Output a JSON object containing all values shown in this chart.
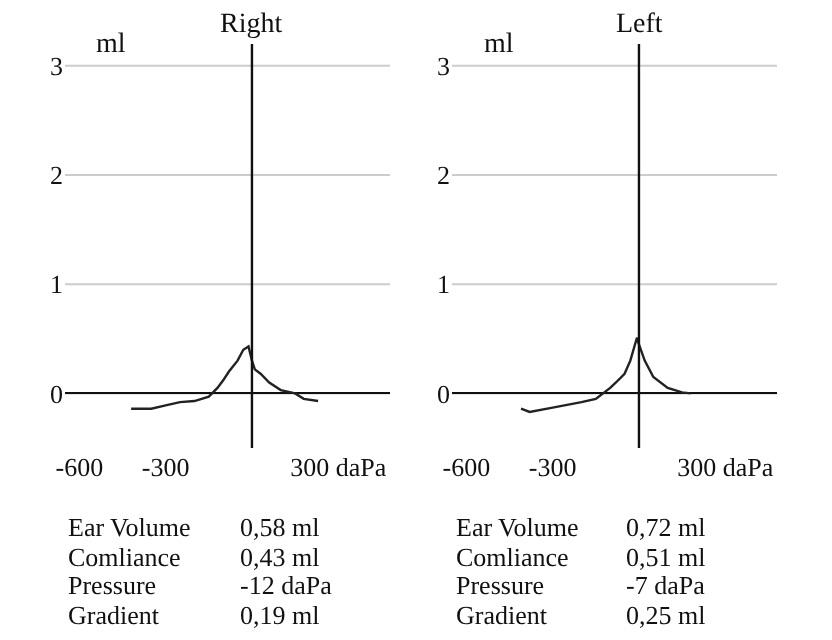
{
  "chart_data": [
    {
      "type": "line",
      "subtitle": "Right",
      "ref_lines": [
        {
          "axis": "x",
          "value": 0,
          "color": "#111111"
        }
      ],
      "ylabel": "ml",
      "xlim": [
        -650,
        480
      ],
      "ylim": [
        -0.5,
        3.2
      ],
      "xticks": [
        -600,
        -300,
        {
          "value": 300,
          "label": "300 daPa"
        }
      ],
      "yticks": [
        0,
        1,
        2,
        3
      ],
      "grid": "y",
      "marker": "none",
      "line_style": "solid",
      "series": [
        {
          "color": "#222222",
          "x": [
            -420,
            -350,
            -300,
            -250,
            -200,
            -150,
            -120,
            -100,
            -80,
            -50,
            -30,
            -12,
            0,
            10,
            30,
            60,
            100,
            150,
            180,
            230
          ],
          "values": [
            -0.14,
            -0.14,
            -0.11,
            -0.08,
            -0.07,
            -0.03,
            0.05,
            0.12,
            0.2,
            0.3,
            0.4,
            0.43,
            0.3,
            0.22,
            0.18,
            0.1,
            0.03,
            0.0,
            -0.05,
            -0.07
          ]
        }
      ],
      "annotations": [
        "Ear Volume",
        "0,58 ml",
        "Comliance",
        "0,43 ml",
        "Pressure",
        "-12 daPa",
        "Gradient",
        "0,19 ml"
      ]
    },
    {
      "type": "line",
      "subtitle": "Left",
      "ref_lines": [
        {
          "axis": "x",
          "value": 0,
          "color": "#111111"
        }
      ],
      "ylabel": "ml",
      "xlim": [
        -650,
        480
      ],
      "ylim": [
        -0.5,
        3.2
      ],
      "xticks": [
        -600,
        -300,
        {
          "value": 300,
          "label": "300 daPa"
        }
      ],
      "yticks": [
        0,
        1,
        2,
        3
      ],
      "grid": "y",
      "marker": "none",
      "line_style": "solid",
      "series": [
        {
          "color": "#222222",
          "x": [
            -410,
            -380,
            -300,
            -200,
            -150,
            -100,
            -80,
            -50,
            -30,
            -7,
            0,
            20,
            50,
            100,
            150,
            180
          ],
          "values": [
            -0.14,
            -0.17,
            -0.13,
            -0.08,
            -0.05,
            0.05,
            0.1,
            0.18,
            0.3,
            0.51,
            0.45,
            0.3,
            0.15,
            0.05,
            0.01,
            0.0
          ]
        }
      ],
      "annotations": [
        "Ear Volume",
        "0,72 ml",
        "Comliance",
        "0,51 ml",
        "Pressure",
        "-7 daPa",
        "Gradient",
        "0,25 ml"
      ]
    }
  ]
}
